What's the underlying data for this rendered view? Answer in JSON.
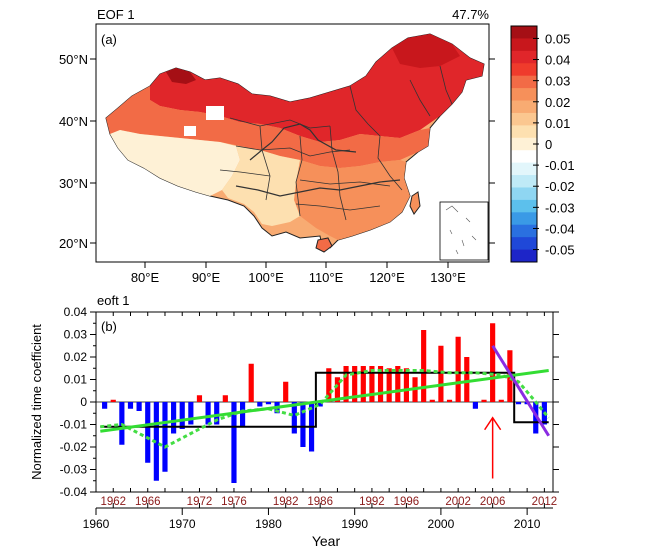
{
  "map_panel": {
    "title_left": "EOF 1",
    "title_right": "47.7%",
    "panel_label": "(a)",
    "lat_ticks": [
      "50°N",
      "40°N",
      "30°N",
      "20°N"
    ],
    "lon_ticks": [
      "80°E",
      "90°E",
      "100°E",
      "110°E",
      "120°E",
      "130°E"
    ],
    "colorbar": {
      "labels": [
        "0.05",
        "0.04",
        "0.03",
        "0.02",
        "0.01",
        "0",
        "-0.01",
        "-0.02",
        "-0.03",
        "-0.04",
        "-0.05"
      ],
      "colors": [
        "#a50f15",
        "#c8171c",
        "#e0262a",
        "#ef3b2c",
        "#f26b46",
        "#f6905a",
        "#f8ab72",
        "#fbc790",
        "#fde0b0",
        "#fef1d6",
        "#ffffff",
        "#e2f6fb",
        "#bfeaf7",
        "#8fd6f2",
        "#5cc0ec",
        "#3a9ae6",
        "#2a70e0",
        "#1f48d8",
        "#1d25c8"
      ]
    }
  },
  "chart_data": {
    "type": "bar",
    "title": "eoft 1",
    "panel_label": "(b)",
    "xlabel": "Year",
    "ylabel": "Normalized time coefficient",
    "xlim": [
      1960,
      2013
    ],
    "ylim": [
      -0.04,
      0.04
    ],
    "yticks": [
      "0.04",
      "0.03",
      "0.02",
      "0.01",
      "0",
      "-0.01",
      "-0.02",
      "-0.03",
      "-0.04"
    ],
    "ytick_values": [
      0.04,
      0.03,
      0.02,
      0.01,
      0,
      -0.01,
      -0.02,
      -0.03,
      -0.04
    ],
    "xticks_bottom": [
      "1960",
      "1970",
      "1980",
      "1990",
      "2000",
      "2010"
    ],
    "xticks_bottom_values": [
      1960,
      1970,
      1980,
      1990,
      2000,
      2010
    ],
    "xticks_top": [
      "1962",
      "1966",
      "1972",
      "1976",
      "1982",
      "1986",
      "1992",
      "1996",
      "2002",
      "2006",
      "2012"
    ],
    "xticks_top_values": [
      1962,
      1966,
      1972,
      1976,
      1982,
      1986,
      1992,
      1996,
      2002,
      2006,
      2012
    ],
    "xticks_top_color": "#8b1a1a",
    "positive_color": "#ff0000",
    "negative_color": "#0000ff",
    "years": [
      1961,
      1962,
      1963,
      1964,
      1965,
      1966,
      1967,
      1968,
      1969,
      1970,
      1971,
      1972,
      1973,
      1974,
      1975,
      1976,
      1977,
      1978,
      1979,
      1980,
      1981,
      1982,
      1983,
      1984,
      1985,
      1986,
      1987,
      1988,
      1989,
      1990,
      1991,
      1992,
      1993,
      1994,
      1995,
      1996,
      1997,
      1998,
      1999,
      2000,
      2001,
      2002,
      2003,
      2004,
      2005,
      2006,
      2007,
      2008,
      2009,
      2010,
      2011,
      2012
    ],
    "values": [
      -0.003,
      0.001,
      -0.019,
      -0.003,
      -0.004,
      -0.027,
      -0.035,
      -0.031,
      -0.014,
      -0.012,
      -0.01,
      0.003,
      -0.01,
      -0.01,
      0.003,
      -0.036,
      -0.011,
      0.017,
      -0.002,
      -0.001,
      -0.005,
      0.009,
      -0.014,
      -0.02,
      -0.022,
      -0.002,
      0.015,
      0.011,
      0.016,
      0.016,
      0.016,
      0.016,
      0.016,
      0.015,
      0.016,
      0.015,
      0.011,
      0.032,
      0.001,
      0.025,
      0.001,
      0.029,
      0.02,
      -0.003,
      0.001,
      0.035,
      0.001,
      0.023,
      -0.001,
      -0.001,
      -0.014,
      -0.01
    ],
    "step_line": {
      "color": "#000000",
      "x": [
        1960.5,
        1985.5,
        1985.5,
        2008.5,
        2008.5,
        2012.5
      ],
      "y": [
        -0.011,
        -0.011,
        0.013,
        0.013,
        -0.009,
        -0.009
      ]
    },
    "linear_trend": {
      "color": "#33dd33",
      "x": [
        1960.5,
        2012.5
      ],
      "y": [
        -0.013,
        0.014
      ]
    },
    "smoothed_curve": {
      "color": "#44dd44",
      "x": [
        1960.5,
        1963,
        1966,
        1968,
        1971,
        1974,
        1977,
        1980,
        1983,
        1986,
        1989,
        1992,
        1995,
        1998,
        2001,
        2004,
        2007,
        2009,
        2011,
        2012.5
      ],
      "y": [
        -0.011,
        -0.01,
        -0.016,
        -0.02,
        -0.014,
        -0.008,
        -0.004,
        -0.003,
        -0.006,
        -0.001,
        0.012,
        0.014,
        0.014,
        0.014,
        0.013,
        0.013,
        0.012,
        0.009,
        0.0,
        -0.007
      ]
    },
    "recent_trend": {
      "color": "#8a2be2",
      "x": [
        2006,
        2012.5
      ],
      "y": [
        0.025,
        -0.015
      ]
    },
    "arrow": {
      "color": "#ff0000",
      "x": 2006,
      "y_from": -0.034,
      "y_to": -0.007
    }
  }
}
